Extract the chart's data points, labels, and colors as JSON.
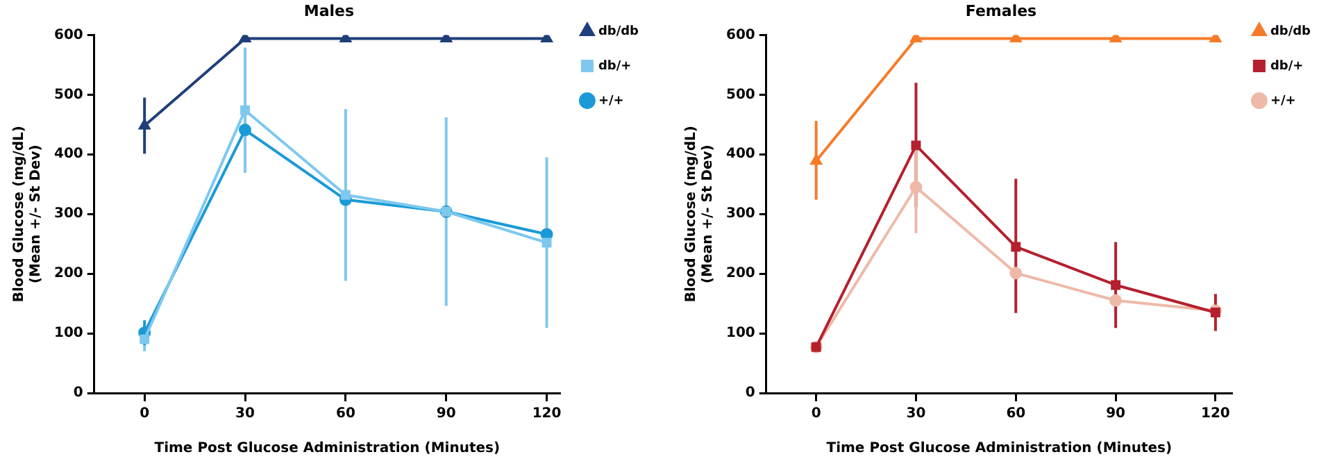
{
  "chart_data": [
    {
      "type": "line",
      "title": "Males",
      "xlabel": "Time Post Glucose Administration (Minutes)",
      "ylabel": "Blood Glucose (mg/dL)\n(Mean +/- St Dev)",
      "x": [
        0,
        30,
        60,
        90,
        120
      ],
      "xlim": [
        -15,
        124
      ],
      "xticks": [
        0,
        30,
        60,
        90,
        120
      ],
      "ylim": [
        0,
        600
      ],
      "yticks": [
        0,
        100,
        200,
        300,
        400,
        500,
        600
      ],
      "grid": false,
      "legend": "top right",
      "series": [
        {
          "name": "db/db",
          "color": "#1f3f7a",
          "marker": "triangle",
          "values": [
            448,
            594,
            594,
            594,
            594
          ],
          "errors": [
            47,
            null,
            null,
            null,
            null
          ]
        },
        {
          "name": "db/+",
          "color": "#7ec8ee",
          "marker": "square",
          "values": [
            90,
            474,
            332,
            304,
            252
          ],
          "errors": [
            20,
            105,
            144,
            158,
            143
          ]
        },
        {
          "name": "+/+",
          "color": "#1a9ad6",
          "marker": "circle",
          "values": [
            101,
            441,
            324,
            304,
            266
          ],
          "errors": [
            21,
            null,
            null,
            null,
            null
          ]
        }
      ]
    },
    {
      "type": "line",
      "title": "Females",
      "xlabel": "Time Post Glucose Administration (Minutes)",
      "ylabel": "Blood Glucose (mg/dL)\n(Mean +/- St Dev)",
      "x": [
        0,
        30,
        60,
        90,
        120
      ],
      "xlim": [
        -15,
        125
      ],
      "xticks": [
        0,
        30,
        60,
        90,
        120
      ],
      "ylim": [
        0,
        600
      ],
      "yticks": [
        0,
        100,
        200,
        300,
        400,
        500,
        600
      ],
      "grid": false,
      "legend": "top right",
      "series": [
        {
          "name": "db/db",
          "color": "#f47b2a",
          "marker": "triangle",
          "values": [
            389,
            594,
            594,
            594,
            594
          ],
          "errors": [
            [
              324,
              456
            ],
            null,
            null,
            null,
            null
          ]
        },
        {
          "name": "db/+",
          "color": "#b5202e",
          "marker": "square",
          "values": [
            77,
            415,
            245,
            181,
            135
          ],
          "errors": [
            null,
            [
              311,
              520
            ],
            [
              134,
              359
            ],
            [
              109,
              253
            ],
            [
              104,
              166
            ]
          ]
        },
        {
          "name": "+/+",
          "color": "#eeb9a8",
          "marker": "circle",
          "values": [
            77,
            345,
            201,
            155,
            138
          ],
          "errors": [
            null,
            [
              268,
              422
            ],
            null,
            null,
            null
          ]
        }
      ]
    }
  ]
}
